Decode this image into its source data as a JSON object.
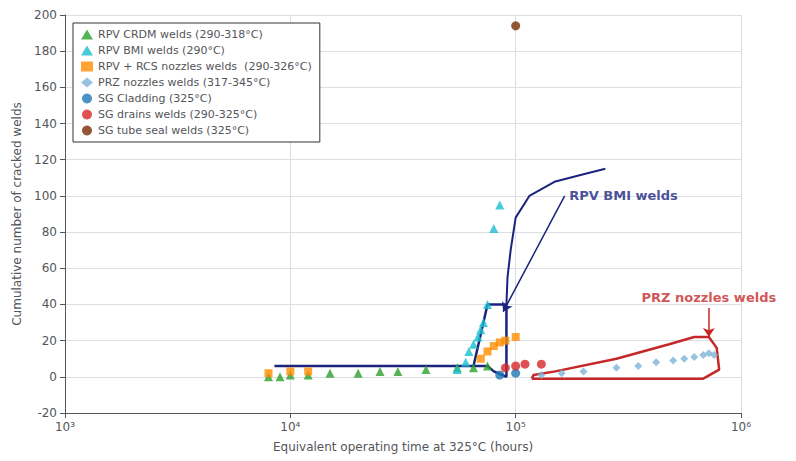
{
  "chart_data": {
    "type": "scatter",
    "xlabel": "Equivalent operating time at 325°C (hours)",
    "ylabel": "Cumulative number of cracked welds",
    "log": "x",
    "xlim": [
      1000,
      1000000
    ],
    "xticks": [
      {
        "value": 1000,
        "label": "10³"
      },
      {
        "value": 10000,
        "label": "10⁴"
      },
      {
        "value": 100000,
        "label": "10⁵"
      },
      {
        "value": 1000000,
        "label": "10⁶"
      }
    ],
    "ylim": [
      -20,
      200
    ],
    "yticks": [
      -20,
      0,
      20,
      40,
      60,
      80,
      100,
      120,
      140,
      160,
      180,
      200
    ],
    "grid": true,
    "legend": "upper left",
    "series": [
      {
        "type": "polygon",
        "color": "#1a237e",
        "x": [
          8500,
          75000,
          80000,
          87000,
          91000,
          91000,
          80000,
          75000,
          65000,
          8500
        ],
        "values": [
          6,
          6,
          3,
          1,
          0,
          40,
          40,
          40,
          6,
          6
        ]
      },
      {
        "type": "line",
        "color": "#1a237e",
        "x": [
          91000,
          92000,
          95000,
          100000,
          115000,
          150000,
          200000,
          250000
        ],
        "values": [
          40,
          55,
          70,
          88,
          100,
          108,
          112,
          115
        ]
      },
      {
        "type": "polygon",
        "color": "#c62828",
        "x": [
          118000,
          145000,
          180000,
          280000,
          480000,
          680000,
          800000,
          780000,
          720000,
          620000,
          480000,
          280000,
          150000,
          120000,
          118000
        ],
        "values": [
          -1,
          -1,
          -1,
          -1,
          -1,
          -1,
          4,
          16,
          22,
          22,
          18,
          10,
          3,
          1,
          -1
        ]
      },
      {
        "type": "scatter",
        "name": "RPV CRDM welds (290-318°C)",
        "marker": "triangle",
        "color": "#2ca02c",
        "x": [
          8000,
          9000,
          10000,
          12000,
          15000,
          20000,
          25000,
          30000,
          40000,
          55000,
          65000,
          75000
        ],
        "values": [
          0,
          0,
          1,
          1,
          2,
          2,
          3,
          3,
          4,
          5,
          5,
          6
        ]
      },
      {
        "type": "scatter",
        "name": "RPV BMI welds (290°C)",
        "marker": "triangle",
        "color": "#17becf",
        "x": [
          55000,
          60000,
          62000,
          65000,
          68000,
          70000,
          72000,
          75000,
          80000,
          85000
        ],
        "values": [
          4,
          8,
          14,
          18,
          22,
          26,
          30,
          40,
          82,
          95
        ]
      },
      {
        "type": "scatter",
        "name": "RPV + RCS nozzles welds  (290-326°C)",
        "marker": "square",
        "color": "#ff8c00",
        "x": [
          8000,
          10000,
          12000,
          70000,
          75000,
          80000,
          85000,
          90000,
          100000
        ],
        "values": [
          2,
          3,
          3,
          10,
          14,
          17,
          19,
          20,
          22
        ]
      },
      {
        "type": "scatter",
        "name": "PRZ nozzles welds (317-345°C)",
        "marker": "diamond",
        "color": "#7db4d8",
        "x": [
          130000,
          160000,
          200000,
          280000,
          350000,
          420000,
          500000,
          560000,
          620000,
          680000,
          720000,
          760000
        ],
        "values": [
          1,
          2,
          3,
          5,
          6,
          8,
          9,
          10,
          11,
          12,
          13,
          12
        ]
      },
      {
        "type": "scatter",
        "name": "SG Cladding (325°C)",
        "marker": "circle",
        "color": "#1f77b4",
        "x": [
          85000,
          100000
        ],
        "values": [
          1,
          2
        ]
      },
      {
        "type": "scatter",
        "name": "SG drains welds (290-325°C)",
        "marker": "circle",
        "color": "#d62728",
        "x": [
          90000,
          100000,
          110000,
          130000
        ],
        "values": [
          5,
          6,
          7,
          7
        ]
      },
      {
        "type": "scatter",
        "name": "SG tube seal welds (325°C)",
        "marker": "circle",
        "color": "#7b2d00",
        "x": [
          100000
        ],
        "values": [
          194
        ]
      }
    ],
    "annotations": [
      {
        "text": "RPV BMI welds",
        "color": "#1a237e",
        "x": 165000,
        "y": 100,
        "arrow_x": 88000,
        "arrow_y": 36
      },
      {
        "text": "PRZ nozzles welds",
        "color": "#c62828",
        "x": 720000,
        "y": 38,
        "arrow_x": 720000,
        "arrow_y": 22
      }
    ]
  }
}
